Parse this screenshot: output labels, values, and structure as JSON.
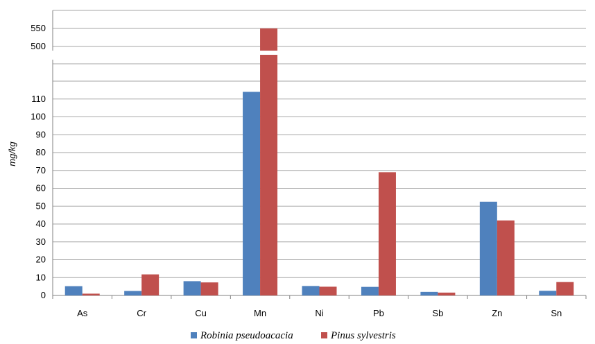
{
  "chart_data": {
    "type": "bar",
    "categories": [
      "As",
      "Cr",
      "Cu",
      "Mn",
      "Ni",
      "Pb",
      "Sb",
      "Zn",
      "Sn"
    ],
    "series": [
      {
        "name": "Robinia pseudoacacia",
        "color": "#4f81bd",
        "values": [
          5.2,
          2.5,
          8,
          114,
          5.3,
          4.8,
          2,
          52.5,
          2.6
        ]
      },
      {
        "name": "Pinus sylvestris",
        "color": "#c0504d",
        "values": [
          1,
          11.8,
          7.3,
          550,
          4.9,
          69,
          1.6,
          42,
          7.5
        ]
      }
    ],
    "ylabel": "mg/kg",
    "xlabel": "",
    "title": "",
    "y_axis_break": true,
    "y_lower_range": [
      0,
      120
    ],
    "y_lower_ticks": [
      0,
      10,
      20,
      30,
      40,
      50,
      60,
      70,
      80,
      90,
      100,
      110
    ],
    "y_upper_ticks": [
      500,
      550
    ],
    "grid": true,
    "legend_position": "bottom"
  }
}
